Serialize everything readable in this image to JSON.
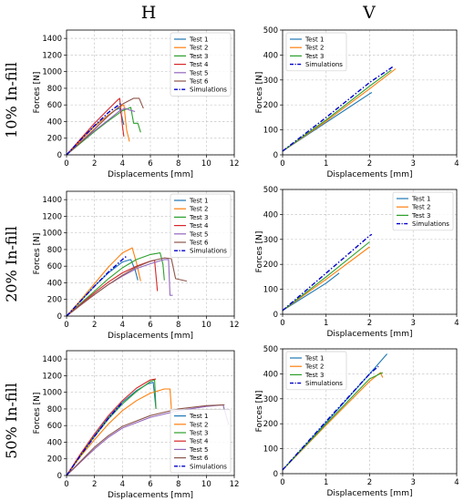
{
  "column_labels": [
    "H",
    "V"
  ],
  "row_labels": [
    "10% In-fill",
    "20% In-fill",
    "50% In-fill"
  ],
  "colors": {
    "Test 1": "#1f77b4",
    "Test 2": "#ff7f0e",
    "Test 3": "#2ca02c",
    "Test 4": "#d62728",
    "Test 5": "#9467bd",
    "Test 6": "#8c564b",
    "Simulations": "#0000cc"
  },
  "chart_data": [
    {
      "type": "line",
      "xlabel": "Displacements [mm]",
      "ylabel": "Forces [N]",
      "xlim": [
        0,
        12
      ],
      "ylim": [
        0,
        1500
      ],
      "xticks": [
        0,
        2,
        4,
        6,
        8,
        10,
        12
      ],
      "yticks": [
        0,
        200,
        400,
        600,
        800,
        1000,
        1200,
        1400
      ],
      "grid": true,
      "legend": "top-right",
      "series": [
        {
          "name": "Test 1",
          "x": [
            0,
            1,
            2,
            3,
            3.5,
            3.8,
            4.0,
            4.1
          ],
          "y": [
            0,
            180,
            350,
            480,
            540,
            560,
            430,
            360
          ]
        },
        {
          "name": "Test 2",
          "x": [
            0,
            1,
            2,
            3,
            3.8,
            4.1,
            4.3,
            4.5
          ],
          "y": [
            0,
            170,
            340,
            480,
            580,
            600,
            300,
            160
          ]
        },
        {
          "name": "Test 3",
          "x": [
            0,
            1,
            2,
            3,
            4,
            4.6,
            4.8,
            5.1,
            5.3
          ],
          "y": [
            0,
            140,
            280,
            410,
            530,
            570,
            380,
            380,
            270
          ]
        },
        {
          "name": "Test 4",
          "x": [
            0,
            1,
            2,
            3,
            3.6,
            3.8,
            4.0,
            4.1
          ],
          "y": [
            0,
            190,
            380,
            550,
            650,
            680,
            350,
            220
          ]
        },
        {
          "name": "Test 5",
          "x": [
            0,
            1,
            2,
            3,
            3.8,
            4.2,
            4.5,
            4.9
          ],
          "y": [
            0,
            150,
            290,
            420,
            530,
            560,
            540,
            520
          ]
        },
        {
          "name": "Test 6",
          "x": [
            0,
            1,
            2,
            3,
            4,
            4.8,
            5.2,
            5.5
          ],
          "y": [
            0,
            150,
            310,
            470,
            610,
            680,
            680,
            560
          ]
        },
        {
          "name": "Simulations",
          "x": [
            0,
            1,
            2,
            3,
            3.9
          ],
          "y": [
            0,
            180,
            350,
            510,
            620
          ]
        }
      ]
    },
    {
      "type": "line",
      "xlabel": "Displacements [mm]",
      "ylabel": "Forces [N]",
      "xlim": [
        0,
        4
      ],
      "ylim": [
        0,
        500
      ],
      "xticks": [
        0,
        1,
        2,
        3,
        4
      ],
      "yticks": [
        0,
        100,
        200,
        300,
        400,
        500
      ],
      "grid": true,
      "legend": "top-left",
      "series": [
        {
          "name": "Test 1",
          "x": [
            0,
            1,
            2,
            2.05
          ],
          "y": [
            15,
            130,
            245,
            250
          ]
        },
        {
          "name": "Test 2",
          "x": [
            0,
            1,
            2,
            2.6
          ],
          "y": [
            15,
            135,
            265,
            345
          ]
        },
        {
          "name": "Test 3",
          "x": [
            0,
            1,
            2,
            2.5
          ],
          "y": [
            15,
            140,
            275,
            340
          ]
        },
        {
          "name": "Simulations",
          "x": [
            0,
            1,
            2,
            2.55
          ],
          "y": [
            15,
            150,
            290,
            355
          ]
        }
      ]
    },
    {
      "type": "line",
      "xlabel": "Displacements [mm]",
      "ylabel": "Forces [N]",
      "xlim": [
        0,
        12
      ],
      "ylim": [
        0,
        1500
      ],
      "xticks": [
        0,
        2,
        4,
        6,
        8,
        10,
        12
      ],
      "yticks": [
        0,
        200,
        400,
        600,
        800,
        1000,
        1200,
        1400
      ],
      "grid": true,
      "legend": "top-right",
      "series": [
        {
          "name": "Test 1",
          "x": [
            0,
            1,
            2,
            3,
            4,
            4.6,
            4.9,
            5.1
          ],
          "y": [
            0,
            180,
            360,
            520,
            650,
            680,
            560,
            430
          ]
        },
        {
          "name": "Test 2",
          "x": [
            0,
            1,
            2,
            3,
            4,
            4.7,
            5.0,
            5.3
          ],
          "y": [
            0,
            190,
            390,
            590,
            760,
            820,
            640,
            420
          ]
        },
        {
          "name": "Test 3",
          "x": [
            0,
            1,
            2,
            3,
            4,
            5,
            6,
            6.7,
            6.9,
            7.0
          ],
          "y": [
            0,
            150,
            300,
            450,
            580,
            680,
            740,
            760,
            620,
            430
          ]
        },
        {
          "name": "Test 4",
          "x": [
            0,
            1,
            2,
            3,
            4,
            5,
            6,
            6.3,
            6.5
          ],
          "y": [
            0,
            140,
            280,
            410,
            520,
            600,
            660,
            670,
            300
          ]
        },
        {
          "name": "Test 5",
          "x": [
            0,
            1,
            2,
            3,
            4,
            5,
            6,
            7,
            7.3,
            7.4,
            7.6
          ],
          "y": [
            0,
            130,
            260,
            380,
            480,
            570,
            630,
            680,
            680,
            250,
            250
          ]
        },
        {
          "name": "Test 6",
          "x": [
            0,
            1,
            2,
            3,
            4,
            5,
            6,
            7,
            7.5,
            7.8,
            8.6
          ],
          "y": [
            0,
            130,
            260,
            380,
            490,
            590,
            660,
            700,
            690,
            450,
            420
          ]
        },
        {
          "name": "Simulations",
          "x": [
            0,
            1,
            2,
            3,
            4,
            4.3
          ],
          "y": [
            0,
            180,
            360,
            530,
            680,
            720
          ]
        }
      ]
    },
    {
      "type": "line",
      "xlabel": "Displacements [mm]",
      "ylabel": "Forces [N]",
      "xlim": [
        0,
        4
      ],
      "ylim": [
        0,
        500
      ],
      "xticks": [
        0,
        1,
        2,
        3,
        4
      ],
      "yticks": [
        0,
        100,
        200,
        300,
        400,
        500
      ],
      "grid": true,
      "legend": "top-right",
      "series": [
        {
          "name": "Test 1",
          "x": [
            0,
            1,
            1.3
          ],
          "y": [
            15,
            125,
            165
          ]
        },
        {
          "name": "Test 2",
          "x": [
            0,
            1,
            2
          ],
          "y": [
            15,
            140,
            270
          ]
        },
        {
          "name": "Test 3",
          "x": [
            0,
            1,
            2
          ],
          "y": [
            15,
            150,
            290
          ]
        },
        {
          "name": "Simulations",
          "x": [
            0,
            1,
            2,
            2.05
          ],
          "y": [
            15,
            165,
            315,
            320
          ]
        }
      ]
    },
    {
      "type": "line",
      "xlabel": "Displacements [mm]",
      "ylabel": "Forces [N]",
      "xlim": [
        0,
        12
      ],
      "ylim": [
        0,
        1500
      ],
      "xticks": [
        0,
        2,
        4,
        6,
        8,
        10,
        12
      ],
      "yticks": [
        0,
        200,
        400,
        600,
        800,
        1000,
        1200,
        1400
      ],
      "grid": true,
      "legend": "bottom-right",
      "series": [
        {
          "name": "Test 1",
          "x": [
            0,
            1,
            2,
            3,
            4,
            5,
            5.8,
            6.2,
            6.4
          ],
          "y": [
            0,
            250,
            480,
            700,
            880,
            1020,
            1100,
            1120,
            800
          ]
        },
        {
          "name": "Test 2",
          "x": [
            0,
            1,
            2,
            3,
            4,
            5,
            6,
            7,
            7.4,
            7.5
          ],
          "y": [
            0,
            230,
            430,
            620,
            780,
            900,
            990,
            1040,
            1040,
            800
          ]
        },
        {
          "name": "Test 3",
          "x": [
            0,
            1,
            2,
            3,
            4,
            5,
            6,
            6.3,
            6.4
          ],
          "y": [
            0,
            240,
            470,
            680,
            860,
            1010,
            1130,
            1150,
            800
          ]
        },
        {
          "name": "Test 4",
          "x": [
            0,
            1,
            2,
            3,
            4,
            5,
            6,
            6.4
          ],
          "y": [
            0,
            260,
            500,
            720,
            900,
            1050,
            1150,
            1160
          ]
        },
        {
          "name": "Test 5",
          "x": [
            0,
            1,
            2,
            3,
            4,
            6,
            8,
            10,
            11.2,
            11.6
          ],
          "y": [
            0,
            160,
            320,
            460,
            570,
            700,
            780,
            830,
            850,
            610
          ]
        },
        {
          "name": "Test 6",
          "x": [
            0,
            1,
            2,
            3,
            4,
            6,
            8,
            10,
            11.3
          ],
          "y": [
            0,
            170,
            340,
            480,
            590,
            720,
            800,
            840,
            850
          ]
        },
        {
          "name": "Simulations",
          "x": [
            0,
            1,
            2,
            3,
            4
          ],
          "y": [
            0,
            240,
            470,
            690,
            880
          ]
        }
      ]
    },
    {
      "type": "line",
      "xlabel": "Displacements [mm]",
      "ylabel": "Forces [N]",
      "xlim": [
        0,
        4
      ],
      "ylim": [
        0,
        500
      ],
      "xticks": [
        0,
        1,
        2,
        3,
        4
      ],
      "yticks": [
        0,
        100,
        200,
        300,
        400,
        500
      ],
      "grid": true,
      "legend": "top-left",
      "series": [
        {
          "name": "Test 1",
          "x": [
            0,
            1,
            2,
            2.4
          ],
          "y": [
            15,
            205,
            400,
            480
          ]
        },
        {
          "name": "Test 2",
          "x": [
            0,
            1,
            2,
            2.25,
            2.3
          ],
          "y": [
            15,
            195,
            370,
            405,
            385
          ]
        },
        {
          "name": "Test 3",
          "x": [
            0,
            1,
            2,
            2.3
          ],
          "y": [
            15,
            200,
            380,
            405
          ]
        },
        {
          "name": "Simulations",
          "x": [
            0,
            1,
            2,
            2.2
          ],
          "y": [
            15,
            210,
            400,
            430
          ]
        }
      ]
    }
  ]
}
